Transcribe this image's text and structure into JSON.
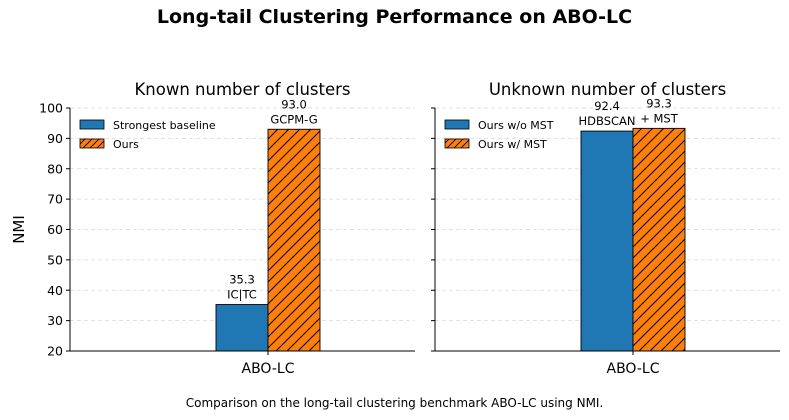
{
  "figure": {
    "title": "Long-tail Clustering Performance on ABO-LC",
    "caption": "Comparison on the long-tail clustering benchmark ABO-LC using NMI.",
    "colors": {
      "blue": "#1f77b4",
      "orange": "#ff7f0e",
      "grid": "#d9d9d9"
    }
  },
  "chart_data": [
    {
      "type": "bar",
      "title": "Known number of clusters",
      "ylabel": "NMI",
      "xlabel": "",
      "categories": [
        "ABO-LC"
      ],
      "ylim": [
        20,
        100
      ],
      "yticks": [
        20,
        30,
        40,
        50,
        60,
        70,
        80,
        90,
        100
      ],
      "grid": "y, dashed",
      "legend_position": "top-left",
      "series": [
        {
          "name": "Strongest baseline",
          "values": [
            35.3
          ],
          "bar_labels": [
            "35.3\nIC|TC"
          ],
          "color": "#1f77b4",
          "hatch": false
        },
        {
          "name": "Ours",
          "values": [
            93.0
          ],
          "bar_labels": [
            "93.0\nGCPM-G"
          ],
          "color": "#ff7f0e",
          "hatch": true
        }
      ]
    },
    {
      "type": "bar",
      "title": "Unknown number of clusters",
      "ylabel": "",
      "xlabel": "",
      "categories": [
        "ABO-LC"
      ],
      "ylim": [
        20,
        100
      ],
      "yticks": [
        20,
        30,
        40,
        50,
        60,
        70,
        80,
        90,
        100
      ],
      "grid": "y, dashed",
      "legend_position": "top-left",
      "series": [
        {
          "name": "Ours w/o MST",
          "values": [
            92.4
          ],
          "bar_labels": [
            "92.4\nHDBSCAN"
          ],
          "color": "#1f77b4",
          "hatch": false
        },
        {
          "name": "Ours w/ MST",
          "values": [
            93.3
          ],
          "bar_labels": [
            "93.3\n+ MST"
          ],
          "color": "#ff7f0e",
          "hatch": true
        }
      ]
    }
  ]
}
